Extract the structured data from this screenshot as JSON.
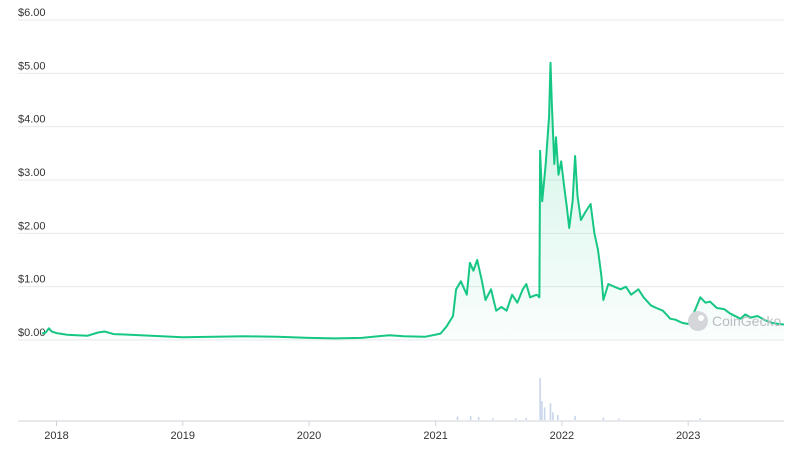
{
  "chart_data": {
    "type": "area",
    "title": "",
    "xlabel": "",
    "ylabel": "",
    "currency_prefix": "$",
    "ylim": [
      0,
      6
    ],
    "yticks": [
      0,
      1,
      2,
      3,
      4,
      5,
      6
    ],
    "ytick_labels": [
      "$0.00",
      "$1.00",
      "$2.00",
      "$3.00",
      "$4.00",
      "$5.00",
      "$6.00"
    ],
    "xlim": [
      "2017-11-20",
      "2023-10-05"
    ],
    "xticks": [
      "2018-01-01",
      "2019-01-01",
      "2020-01-01",
      "2021-01-01",
      "2022-01-01",
      "2023-01-01"
    ],
    "xtick_labels": [
      "2018",
      "2019",
      "2020",
      "2021",
      "2022",
      "2023"
    ],
    "grid": true,
    "line_color": "#16c784",
    "fill_color": "#16c784",
    "volume_color": "#c9d6ea",
    "series": [
      {
        "points": [
          [
            "2017-11-20",
            0.12
          ],
          [
            "2017-12-01",
            0.14
          ],
          [
            "2017-12-10",
            0.22
          ],
          [
            "2017-12-18",
            0.16
          ],
          [
            "2018-01-01",
            0.13
          ],
          [
            "2018-02-01",
            0.1
          ],
          [
            "2018-03-01",
            0.09
          ],
          [
            "2018-04-01",
            0.08
          ],
          [
            "2018-05-01",
            0.14
          ],
          [
            "2018-05-20",
            0.16
          ],
          [
            "2018-06-15",
            0.11
          ],
          [
            "2018-08-01",
            0.1
          ],
          [
            "2018-10-01",
            0.08
          ],
          [
            "2019-01-01",
            0.05
          ],
          [
            "2019-04-01",
            0.06
          ],
          [
            "2019-07-01",
            0.07
          ],
          [
            "2019-10-01",
            0.06
          ],
          [
            "2020-01-01",
            0.04
          ],
          [
            "2020-03-15",
            0.03
          ],
          [
            "2020-06-01",
            0.04
          ],
          [
            "2020-08-20",
            0.09
          ],
          [
            "2020-10-01",
            0.07
          ],
          [
            "2020-12-01",
            0.06
          ],
          [
            "2021-01-15",
            0.12
          ],
          [
            "2021-02-01",
            0.25
          ],
          [
            "2021-02-20",
            0.45
          ],
          [
            "2021-03-01",
            0.95
          ],
          [
            "2021-03-15",
            1.1
          ],
          [
            "2021-04-01",
            0.85
          ],
          [
            "2021-04-10",
            1.45
          ],
          [
            "2021-04-20",
            1.3
          ],
          [
            "2021-05-01",
            1.5
          ],
          [
            "2021-05-15",
            1.1
          ],
          [
            "2021-05-25",
            0.75
          ],
          [
            "2021-06-10",
            0.95
          ],
          [
            "2021-06-25",
            0.55
          ],
          [
            "2021-07-10",
            0.62
          ],
          [
            "2021-07-25",
            0.55
          ],
          [
            "2021-08-10",
            0.85
          ],
          [
            "2021-08-25",
            0.7
          ],
          [
            "2021-09-10",
            0.95
          ],
          [
            "2021-09-20",
            1.05
          ],
          [
            "2021-10-01",
            0.8
          ],
          [
            "2021-10-20",
            0.85
          ],
          [
            "2021-10-28",
            0.8
          ],
          [
            "2021-10-30",
            3.55
          ],
          [
            "2021-11-05",
            2.6
          ],
          [
            "2021-11-15",
            3.3
          ],
          [
            "2021-11-25",
            4.2
          ],
          [
            "2021-11-29",
            5.2
          ],
          [
            "2021-12-03",
            4.4
          ],
          [
            "2021-12-10",
            3.3
          ],
          [
            "2021-12-15",
            3.8
          ],
          [
            "2021-12-22",
            3.1
          ],
          [
            "2021-12-30",
            3.35
          ],
          [
            "2022-01-07",
            2.9
          ],
          [
            "2022-01-15",
            2.5
          ],
          [
            "2022-01-22",
            2.1
          ],
          [
            "2022-02-01",
            2.6
          ],
          [
            "2022-02-08",
            3.45
          ],
          [
            "2022-02-15",
            2.7
          ],
          [
            "2022-02-25",
            2.25
          ],
          [
            "2022-03-10",
            2.4
          ],
          [
            "2022-03-25",
            2.55
          ],
          [
            "2022-04-05",
            2.0
          ],
          [
            "2022-04-15",
            1.7
          ],
          [
            "2022-04-25",
            1.2
          ],
          [
            "2022-05-01",
            0.75
          ],
          [
            "2022-05-15",
            1.05
          ],
          [
            "2022-06-01",
            1.0
          ],
          [
            "2022-06-20",
            0.95
          ],
          [
            "2022-07-05",
            1.0
          ],
          [
            "2022-07-20",
            0.85
          ],
          [
            "2022-08-10",
            0.95
          ],
          [
            "2022-08-25",
            0.8
          ],
          [
            "2022-09-15",
            0.65
          ],
          [
            "2022-10-01",
            0.6
          ],
          [
            "2022-10-20",
            0.55
          ],
          [
            "2022-11-10",
            0.4
          ],
          [
            "2022-11-25",
            0.38
          ],
          [
            "2022-12-15",
            0.32
          ],
          [
            "2023-01-01",
            0.3
          ],
          [
            "2023-01-20",
            0.55
          ],
          [
            "2023-02-05",
            0.8
          ],
          [
            "2023-02-20",
            0.7
          ],
          [
            "2023-03-05",
            0.72
          ],
          [
            "2023-03-25",
            0.6
          ],
          [
            "2023-04-15",
            0.58
          ],
          [
            "2023-05-01",
            0.5
          ],
          [
            "2023-06-01",
            0.4
          ],
          [
            "2023-06-15",
            0.48
          ],
          [
            "2023-07-01",
            0.42
          ],
          [
            "2023-07-20",
            0.45
          ],
          [
            "2023-08-15",
            0.36
          ],
          [
            "2023-09-01",
            0.32
          ],
          [
            "2023-09-20",
            0.3
          ],
          [
            "2023-10-05",
            0.29
          ]
        ]
      }
    ],
    "volume": [
      [
        "2021-03-05",
        0.08
      ],
      [
        "2021-04-12",
        0.1
      ],
      [
        "2021-05-05",
        0.07
      ],
      [
        "2021-06-15",
        0.04
      ],
      [
        "2021-08-20",
        0.04
      ],
      [
        "2021-09-20",
        0.05
      ],
      [
        "2021-10-30",
        1.0
      ],
      [
        "2021-11-04",
        0.45
      ],
      [
        "2021-11-12",
        0.3
      ],
      [
        "2021-11-29",
        0.4
      ],
      [
        "2021-12-06",
        0.18
      ],
      [
        "2021-12-20",
        0.12
      ],
      [
        "2022-02-08",
        0.1
      ],
      [
        "2022-05-01",
        0.06
      ],
      [
        "2022-06-15",
        0.03
      ],
      [
        "2023-02-05",
        0.04
      ]
    ],
    "watermark": "CoinGecko"
  }
}
